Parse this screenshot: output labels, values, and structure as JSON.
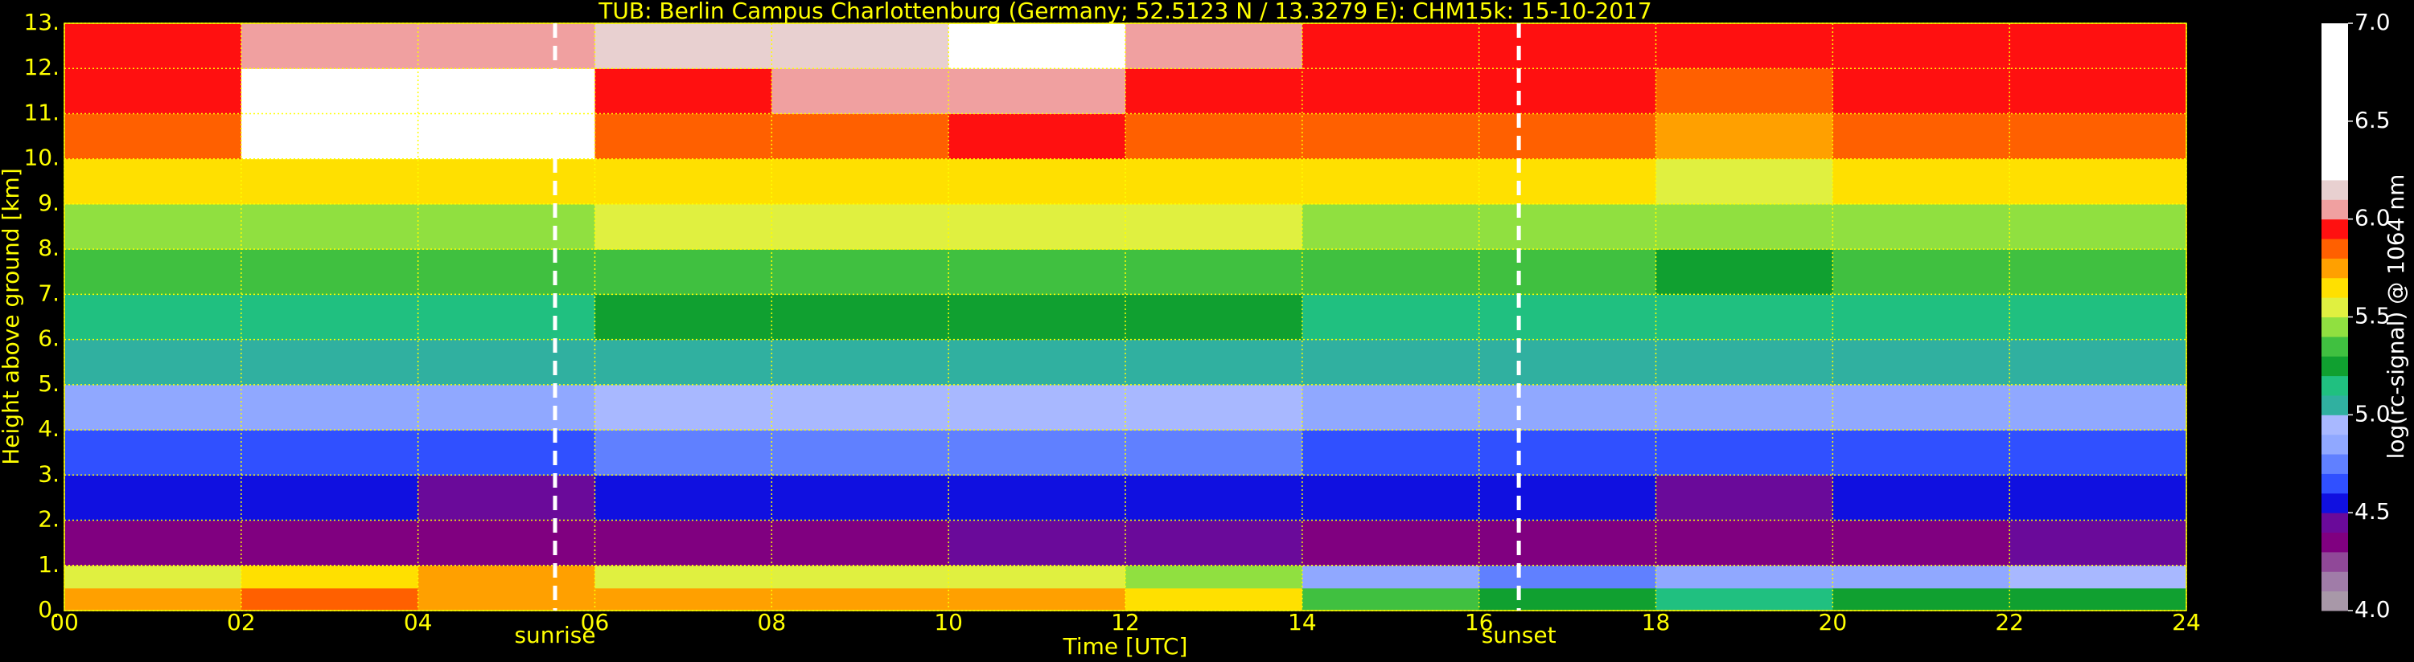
{
  "chart_data": {
    "type": "heatmap",
    "title": "TUB: Berlin Campus Charlottenburg (Germany; 52.5123 N / 13.3279 E):    CHM15k: 15-10-2017",
    "xlabel": "Time [UTC]",
    "ylabel": "Height above ground [km]",
    "colorbar_label": "log(rc-signal) @ 1064 nm",
    "xlim": [
      0,
      24
    ],
    "ylim": [
      0,
      13
    ],
    "xticks": [
      {
        "value": 0,
        "label": "00"
      },
      {
        "value": 2,
        "label": "02"
      },
      {
        "value": 4,
        "label": "04"
      },
      {
        "value": 6,
        "label": "06"
      },
      {
        "value": 8,
        "label": "08"
      },
      10,
      12,
      14,
      16,
      18,
      20,
      22,
      24
    ],
    "yticks": [
      {
        "value": 0,
        "label": "0."
      },
      {
        "value": 1,
        "label": "1."
      },
      {
        "value": 2,
        "label": "2."
      },
      {
        "value": 3,
        "label": "3."
      },
      {
        "value": 4,
        "label": "4."
      },
      {
        "value": 5,
        "label": "5."
      },
      {
        "value": 6,
        "label": "6."
      },
      {
        "value": 7,
        "label": "7."
      },
      {
        "value": 8,
        "label": "8."
      },
      {
        "value": 9,
        "label": "9."
      },
      {
        "value": 10,
        "label": "10."
      },
      {
        "value": 11,
        "label": "11."
      },
      {
        "value": 12,
        "label": "12."
      },
      {
        "value": 13,
        "label": "13."
      }
    ],
    "grid": true,
    "grid_color": "#ffff00",
    "x_bins": [
      0,
      2,
      4,
      6,
      8,
      10,
      12,
      14,
      16,
      18,
      20,
      22,
      24
    ],
    "y_bins": [
      0,
      0.5,
      1,
      2,
      3,
      4,
      5,
      6,
      7,
      8,
      9,
      10,
      11,
      12,
      13
    ],
    "z": [
      [
        5.75,
        5.8,
        5.75,
        5.7,
        5.7,
        5.75,
        5.65,
        5.3,
        5.2,
        5.15,
        5.2,
        5.25
      ],
      [
        5.55,
        5.6,
        5.7,
        5.5,
        5.5,
        5.55,
        5.45,
        4.85,
        4.75,
        4.8,
        4.85,
        4.9
      ],
      [
        4.35,
        4.35,
        4.3,
        4.35,
        4.35,
        4.4,
        4.4,
        4.35,
        4.35,
        4.3,
        4.35,
        4.45
      ],
      [
        4.5,
        4.5,
        4.45,
        4.55,
        4.55,
        4.55,
        4.55,
        4.5,
        4.5,
        4.45,
        4.5,
        4.55
      ],
      [
        4.65,
        4.65,
        4.6,
        4.7,
        4.7,
        4.7,
        4.7,
        4.65,
        4.65,
        4.6,
        4.65,
        4.65
      ],
      [
        4.85,
        4.85,
        4.8,
        4.9,
        4.9,
        4.9,
        4.9,
        4.85,
        4.85,
        4.8,
        4.85,
        4.85
      ],
      [
        5.0,
        5.0,
        5.0,
        5.05,
        5.05,
        5.05,
        5.05,
        5.0,
        5.0,
        5.0,
        5.0,
        5.0
      ],
      [
        5.15,
        5.15,
        5.15,
        5.2,
        5.2,
        5.2,
        5.2,
        5.15,
        5.15,
        5.1,
        5.15,
        5.15
      ],
      [
        5.3,
        5.3,
        5.3,
        5.35,
        5.35,
        5.35,
        5.35,
        5.3,
        5.3,
        5.25,
        5.3,
        5.3
      ],
      [
        5.45,
        5.45,
        5.45,
        5.5,
        5.5,
        5.5,
        5.5,
        5.45,
        5.45,
        5.4,
        5.45,
        5.45
      ],
      [
        5.6,
        5.6,
        5.6,
        5.65,
        5.65,
        5.65,
        5.65,
        5.6,
        5.6,
        5.55,
        5.6,
        5.6
      ],
      [
        5.8,
        6.3,
        6.2,
        5.85,
        5.85,
        5.9,
        5.85,
        5.8,
        5.8,
        5.75,
        5.8,
        5.8
      ],
      [
        5.9,
        6.4,
        6.3,
        5.95,
        6.0,
        6.05,
        5.95,
        5.9,
        5.9,
        5.85,
        5.9,
        5.9
      ],
      [
        5.95,
        6.0,
        6.0,
        6.1,
        6.1,
        6.2,
        6.0,
        5.95,
        5.95,
        5.9,
        5.95,
        5.95
      ]
    ],
    "clim": [
      4,
      7
    ],
    "colorbar_ticks": [
      {
        "value": 4,
        "label": "4.0"
      },
      4.5,
      {
        "value": 5,
        "label": "5.0"
      },
      5.5,
      {
        "value": 6,
        "label": "6.0"
      },
      6.5,
      {
        "value": 7,
        "label": "7.0"
      }
    ],
    "colorbar_levels": [
      4.0,
      4.1,
      4.2,
      4.3,
      4.4,
      4.5,
      4.6,
      4.7,
      4.8,
      4.9,
      5.0,
      5.1,
      5.2,
      5.3,
      5.4,
      5.5,
      5.6,
      5.7,
      5.8,
      5.9,
      6.0,
      6.1,
      6.2,
      7.0
    ],
    "colorbar_colors": [
      "#a898a8",
      "#a07ca8",
      "#904898",
      "#800080",
      "#6a0a9a",
      "#1010e0",
      "#3050ff",
      "#6080ff",
      "#90a8ff",
      "#a8b8ff",
      "#30b0a0",
      "#20c080",
      "#10a030",
      "#40c040",
      "#90e040",
      "#e0f040",
      "#ffe000",
      "#ffa000",
      "#ff6000",
      "#ff1010",
      "#f0a0a0",
      "#e8d0d0",
      "#ffffff"
    ],
    "annotations": [
      {
        "text": "sunrise",
        "x": 5.55
      },
      {
        "text": "sunset",
        "x": 16.45
      }
    ]
  }
}
